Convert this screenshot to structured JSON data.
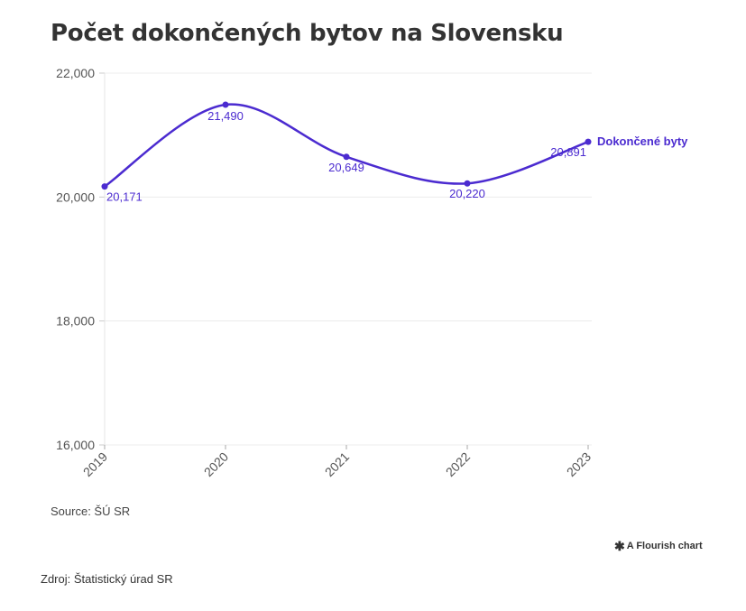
{
  "chart_data": {
    "type": "line",
    "title": "Počet dokončených bytov na Slovensku",
    "categories": [
      "2019",
      "2020",
      "2021",
      "2022",
      "2023"
    ],
    "series": [
      {
        "name": "Dokončené byty",
        "values": [
          20171,
          21490,
          20649,
          20220,
          20891
        ],
        "labels": [
          "20,171",
          "21,490",
          "20,649",
          "20,220",
          "20,891"
        ],
        "color": "#4b2bd0"
      }
    ],
    "y_ticks": [
      16000,
      18000,
      20000,
      22000
    ],
    "y_tick_labels": [
      "16,000",
      "18,000",
      "20,000",
      "22,000"
    ],
    "ylim": [
      16000,
      22000
    ],
    "xlabel": "",
    "ylabel": ""
  },
  "footer": {
    "source": "Source: ŠÚ SR",
    "flourish_credit": "A Flourish chart",
    "zdroj": "Zdroj: Štatistický úrad SR"
  }
}
